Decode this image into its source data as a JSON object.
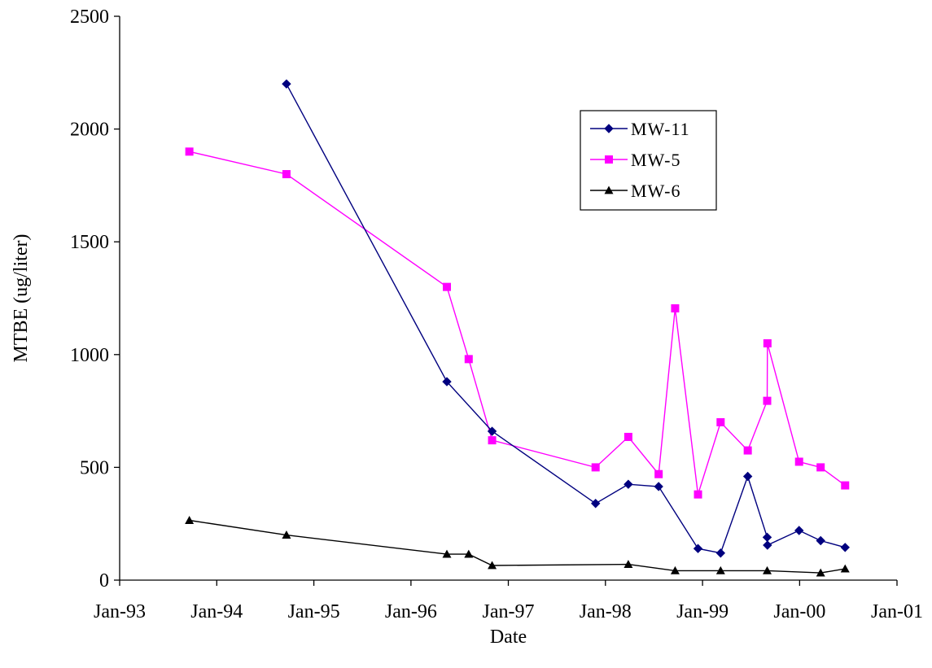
{
  "chart_data": {
    "type": "line",
    "title": "",
    "xlabel": "Date",
    "ylabel": "MTBE (ug/liter)",
    "ylim": [
      0,
      2500
    ],
    "y_ticks": [
      0,
      500,
      1000,
      1500,
      2000,
      2500
    ],
    "y_tick_labels": [
      "0",
      "500",
      "1000",
      "1500",
      "2000",
      "2500"
    ],
    "xlim": [
      "1993-01-01",
      "2001-01-01"
    ],
    "x_ticks": [
      "1993-01-01",
      "1994-01-01",
      "1995-01-01",
      "1996-01-01",
      "1997-01-01",
      "1998-01-01",
      "1999-01-01",
      "2000-01-01",
      "2001-01-01"
    ],
    "x_tick_labels": [
      "Jan-93",
      "Jan-94",
      "Jan-95",
      "Jan-96",
      "Jan-97",
      "Jan-98",
      "Jan-99",
      "Jan-00",
      "Jan-01"
    ],
    "grid": false,
    "legend_position": "top-right",
    "series": [
      {
        "name": "MW-11",
        "color": "#00007f",
        "marker": "diamond",
        "points": [
          {
            "x": "1994-09-20",
            "y": 2200
          },
          {
            "x": "1996-05-15",
            "y": 880
          },
          {
            "x": "1996-11-01",
            "y": 660
          },
          {
            "x": "1997-11-25",
            "y": 340
          },
          {
            "x": "1998-03-28",
            "y": 425
          },
          {
            "x": "1998-07-20",
            "y": 415
          },
          {
            "x": "1998-12-15",
            "y": 140
          },
          {
            "x": "1999-03-10",
            "y": 120
          },
          {
            "x": "1999-06-20",
            "y": 460
          },
          {
            "x": "1999-09-01",
            "y": 190
          },
          {
            "x": "1999-09-02",
            "y": 155
          },
          {
            "x": "1999-12-30",
            "y": 220
          },
          {
            "x": "2000-03-20",
            "y": 175
          },
          {
            "x": "2000-06-20",
            "y": 145
          }
        ]
      },
      {
        "name": "MW-5",
        "color": "#ff00ff",
        "marker": "square",
        "points": [
          {
            "x": "1993-09-20",
            "y": 1900
          },
          {
            "x": "1994-09-20",
            "y": 1800
          },
          {
            "x": "1996-05-15",
            "y": 1300
          },
          {
            "x": "1996-08-05",
            "y": 980
          },
          {
            "x": "1996-11-01",
            "y": 620
          },
          {
            "x": "1997-11-25",
            "y": 500
          },
          {
            "x": "1998-03-28",
            "y": 635
          },
          {
            "x": "1998-07-20",
            "y": 470
          },
          {
            "x": "1998-09-20",
            "y": 1205
          },
          {
            "x": "1998-12-15",
            "y": 380
          },
          {
            "x": "1999-03-10",
            "y": 700
          },
          {
            "x": "1999-06-20",
            "y": 575
          },
          {
            "x": "1999-09-01",
            "y": 795
          },
          {
            "x": "1999-09-02",
            "y": 1050
          },
          {
            "x": "1999-12-30",
            "y": 525
          },
          {
            "x": "2000-03-20",
            "y": 500
          },
          {
            "x": "2000-06-20",
            "y": 420
          }
        ]
      },
      {
        "name": "MW-6",
        "color": "#000000",
        "marker": "triangle",
        "points": [
          {
            "x": "1993-09-20",
            "y": 265
          },
          {
            "x": "1994-09-20",
            "y": 200
          },
          {
            "x": "1996-05-15",
            "y": 115
          },
          {
            "x": "1996-08-05",
            "y": 115
          },
          {
            "x": "1996-11-01",
            "y": 65
          },
          {
            "x": "1998-03-28",
            "y": 70
          },
          {
            "x": "1998-09-20",
            "y": 42
          },
          {
            "x": "1999-03-10",
            "y": 42
          },
          {
            "x": "1999-09-01",
            "y": 42
          },
          {
            "x": "2000-03-20",
            "y": 32
          },
          {
            "x": "2000-06-20",
            "y": 50
          }
        ]
      }
    ]
  }
}
